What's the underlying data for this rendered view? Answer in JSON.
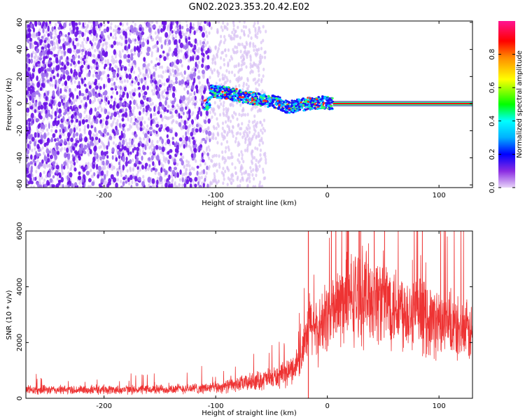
{
  "title": "GN02.2023.353.20.42.E02",
  "chart_data": [
    {
      "type": "heatmap",
      "xlabel": "Height of straight line (km)",
      "ylabel": "Frequency (Hz)",
      "xlim": [
        -270,
        130
      ],
      "ylim": [
        -62,
        61
      ],
      "xticks": [
        -200,
        -100,
        0,
        100
      ],
      "yticks": [
        -60,
        -40,
        -20,
        0,
        20,
        40,
        60
      ],
      "colorbar": {
        "label": "Normalized spectral amplitude",
        "range": [
          0,
          1
        ],
        "ticks": [
          "0.0",
          "0.2",
          "0.4",
          "0.6",
          "0.8"
        ],
        "colors": [
          "#e8d4f8",
          "#8a2be2",
          "#0000ff",
          "#00b0ff",
          "#00ffff",
          "#00ff00",
          "#ffff00",
          "#ff8c00",
          "#ff0000",
          "#ff1493"
        ]
      },
      "features": {
        "noise_region_x": [
          -270,
          -55
        ],
        "signal_band": [
          {
            "x": -105,
            "y": 9
          },
          {
            "x": -90,
            "y": 8
          },
          {
            "x": -75,
            "y": 5
          },
          {
            "x": -60,
            "y": 3
          },
          {
            "x": -45,
            "y": 1
          },
          {
            "x": -35,
            "y": -3
          },
          {
            "x": -25,
            "y": -1
          },
          {
            "x": -15,
            "y": 0
          },
          {
            "x": -5,
            "y": 1
          },
          {
            "x": 5,
            "y": 0
          },
          {
            "x": 130,
            "y": 0
          }
        ],
        "constant_line": {
          "x_start": 5,
          "x_end": 130,
          "frequency": 0
        }
      }
    },
    {
      "type": "line",
      "xlabel": "Height of straight line (km)",
      "ylabel": "SNR (10 * v/v)",
      "xlim": [
        -270,
        130
      ],
      "ylim": [
        0,
        6000
      ],
      "xticks": [
        -200,
        -100,
        0,
        100
      ],
      "yticks": [
        0,
        2000,
        4000,
        6000
      ],
      "color": "#ee3333",
      "envelope": [
        {
          "x": -270,
          "y": 300
        },
        {
          "x": -200,
          "y": 300
        },
        {
          "x": -150,
          "y": 320
        },
        {
          "x": -100,
          "y": 380
        },
        {
          "x": -80,
          "y": 500
        },
        {
          "x": -60,
          "y": 650
        },
        {
          "x": -40,
          "y": 800
        },
        {
          "x": -30,
          "y": 1100
        },
        {
          "x": -20,
          "y": 1800
        },
        {
          "x": -15,
          "y": 2800
        },
        {
          "x": -10,
          "y": 2300
        },
        {
          "x": -5,
          "y": 2600
        },
        {
          "x": 0,
          "y": 3000
        },
        {
          "x": 10,
          "y": 3300
        },
        {
          "x": 20,
          "y": 3600
        },
        {
          "x": 30,
          "y": 3700
        },
        {
          "x": 40,
          "y": 3700
        },
        {
          "x": 60,
          "y": 3400
        },
        {
          "x": 80,
          "y": 3000
        },
        {
          "x": 100,
          "y": 2700
        },
        {
          "x": 130,
          "y": 2300
        }
      ],
      "spike": {
        "x": -17,
        "y": 6000
      }
    }
  ]
}
